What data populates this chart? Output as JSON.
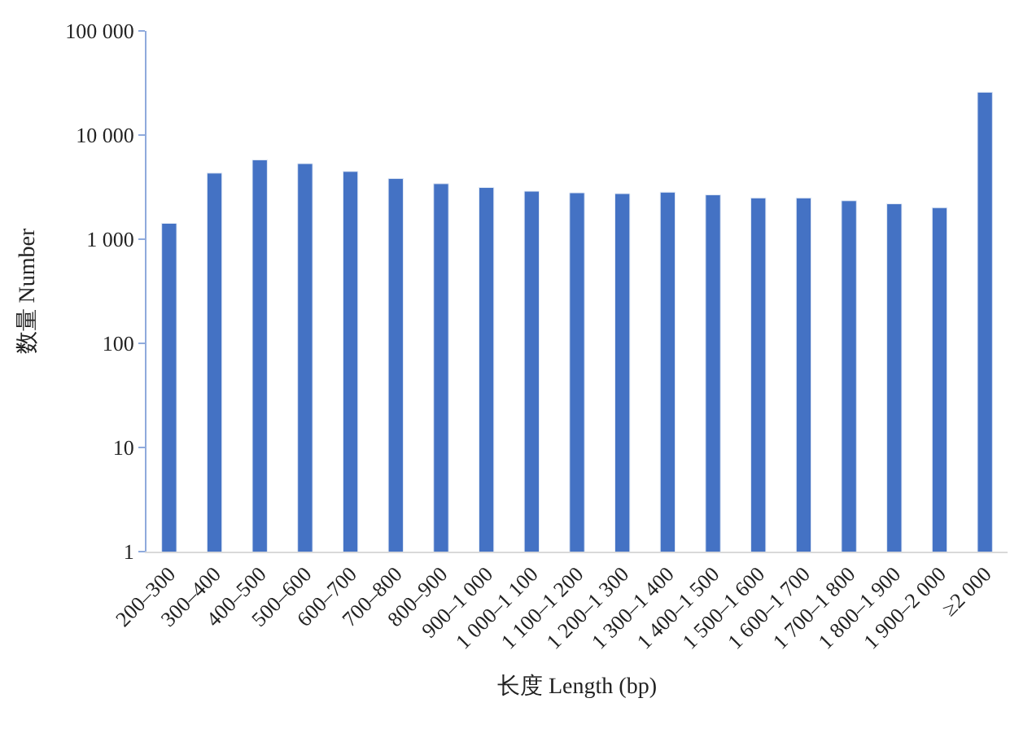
{
  "chart_data": {
    "type": "bar",
    "xlabel": "长度 Length (bp)",
    "ylabel": "数量 Number",
    "categories": [
      "200–300",
      "300–400",
      "400–500",
      "500–600",
      "600–700",
      "700–800",
      "800–900",
      "900–1 000",
      "1 000–1 100",
      "1 100–1 200",
      "1 200–1 300",
      "1 300–1 400",
      "1 400–1 500",
      "1 500–1 600",
      "1 600–1 700",
      "1 700–1 800",
      "1 800–1 900",
      "1 900–2 000",
      "≥2 000"
    ],
    "values": [
      1420,
      4310,
      5770,
      5320,
      4470,
      3830,
      3410,
      3140,
      2890,
      2790,
      2740,
      2830,
      2670,
      2490,
      2490,
      2340,
      2190,
      2010,
      25800
    ],
    "color": "#4472c4",
    "log": true,
    "ylim": [
      1,
      100000
    ],
    "yticks": [
      {
        "value": 1,
        "label": "1"
      },
      {
        "value": 10,
        "label": "10"
      },
      {
        "value": 100,
        "label": "100"
      },
      {
        "value": 1000,
        "label": "1 000"
      },
      {
        "value": 10000,
        "label": "10 000"
      },
      {
        "value": 100000,
        "label": "100 000"
      }
    ],
    "title": null
  }
}
